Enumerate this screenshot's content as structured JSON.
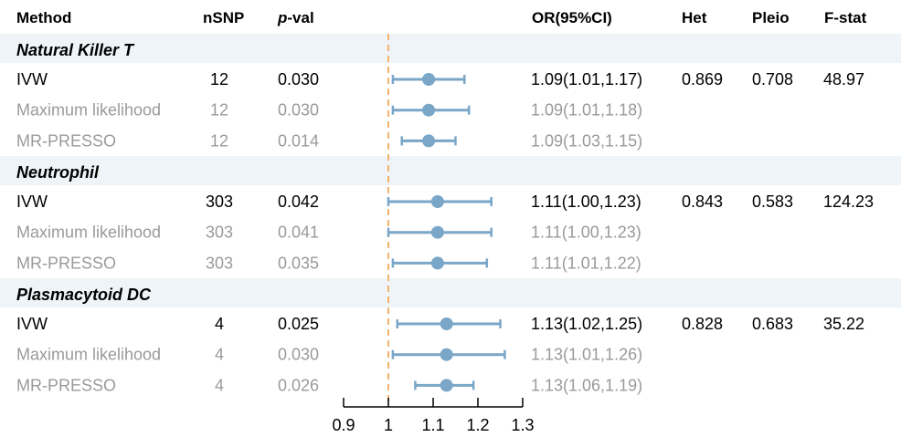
{
  "headers": {
    "method": "Method",
    "nsnp": "nSNP",
    "pval_p": "p",
    "pval_rest": "-val",
    "or": "OR(95%CI)",
    "het": "Het",
    "pleio": "Pleio",
    "fstat": "F-stat"
  },
  "colors": {
    "band": "#eef4f8",
    "primary_text": "#000000",
    "secondary_text": "#9a9a9a",
    "marker": "#7aa6c8",
    "reference_line": "#f3b36a",
    "axis": "#000000"
  },
  "groups": [
    {
      "name": "Natural Killer T",
      "rows": [
        {
          "method": "IVW",
          "nsnp": "12",
          "pval": "0.030",
          "or": 1.09,
          "lo": 1.01,
          "hi": 1.17,
          "or_text": "1.09(1.01,1.17)",
          "het": "0.869",
          "pleio": "0.708",
          "fstat": "48.97",
          "primary": true
        },
        {
          "method": "Maximum likelihood",
          "nsnp": "12",
          "pval": "0.030",
          "or": 1.09,
          "lo": 1.01,
          "hi": 1.18,
          "or_text": "1.09(1.01,1.18)",
          "het": "",
          "pleio": "",
          "fstat": "",
          "primary": false
        },
        {
          "method": "MR-PRESSO",
          "nsnp": "12",
          "pval": "0.014",
          "or": 1.09,
          "lo": 1.03,
          "hi": 1.15,
          "or_text": "1.09(1.03,1.15)",
          "het": "",
          "pleio": "",
          "fstat": "",
          "primary": false
        }
      ]
    },
    {
      "name": "Neutrophil",
      "rows": [
        {
          "method": "IVW",
          "nsnp": "303",
          "pval": "0.042",
          "or": 1.11,
          "lo": 1.0,
          "hi": 1.23,
          "or_text": "1.11(1.00,1.23)",
          "het": "0.843",
          "pleio": "0.583",
          "fstat": "124.23",
          "primary": true
        },
        {
          "method": "Maximum likelihood",
          "nsnp": "303",
          "pval": "0.041",
          "or": 1.11,
          "lo": 1.0,
          "hi": 1.23,
          "or_text": "1.11(1.00,1.23)",
          "het": "",
          "pleio": "",
          "fstat": "",
          "primary": false
        },
        {
          "method": "MR-PRESSO",
          "nsnp": "303",
          "pval": "0.035",
          "or": 1.11,
          "lo": 1.01,
          "hi": 1.22,
          "or_text": "1.11(1.01,1.22)",
          "het": "",
          "pleio": "",
          "fstat": "",
          "primary": false
        }
      ]
    },
    {
      "name": "Plasmacytoid DC",
      "rows": [
        {
          "method": "IVW",
          "nsnp": "4",
          "pval": "0.025",
          "or": 1.13,
          "lo": 1.02,
          "hi": 1.25,
          "or_text": "1.13(1.02,1.25)",
          "het": "0.828",
          "pleio": "0.683",
          "fstat": "35.22",
          "primary": true
        },
        {
          "method": "Maximum likelihood",
          "nsnp": "4",
          "pval": "0.030",
          "or": 1.13,
          "lo": 1.01,
          "hi": 1.26,
          "or_text": "1.13(1.01,1.26)",
          "het": "",
          "pleio": "",
          "fstat": "",
          "primary": false
        },
        {
          "method": "MR-PRESSO",
          "nsnp": "4",
          "pval": "0.026",
          "or": 1.13,
          "lo": 1.06,
          "hi": 1.19,
          "or_text": "1.13(1.06,1.19)",
          "het": "",
          "pleio": "",
          "fstat": "",
          "primary": false
        }
      ]
    }
  ],
  "chart_data": {
    "type": "scatter",
    "xlim": [
      0.9,
      1.3
    ],
    "xticks": [
      0.9,
      1.0,
      1.1,
      1.2,
      1.3
    ],
    "xtick_labels": [
      "0.9",
      "1",
      "1.1",
      "1.2",
      "1.3"
    ],
    "reference_value": 1.0,
    "series": [
      {
        "categories": [
          "Natural Killer T IVW",
          "Natural Killer T Maximum likelihood",
          "Natural Killer T MR-PRESSO",
          "Neutrophil IVW",
          "Neutrophil Maximum likelihood",
          "Neutrophil MR-PRESSO",
          "Plasmacytoid DC IVW",
          "Plasmacytoid DC Maximum likelihood",
          "Plasmacytoid DC MR-PRESSO"
        ],
        "values": [
          1.09,
          1.09,
          1.09,
          1.11,
          1.11,
          1.11,
          1.13,
          1.13,
          1.13
        ],
        "lower": [
          1.01,
          1.01,
          1.03,
          1.0,
          1.0,
          1.01,
          1.02,
          1.01,
          1.06
        ],
        "upper": [
          1.17,
          1.18,
          1.15,
          1.23,
          1.23,
          1.22,
          1.25,
          1.26,
          1.19
        ]
      }
    ],
    "grid": false
  }
}
